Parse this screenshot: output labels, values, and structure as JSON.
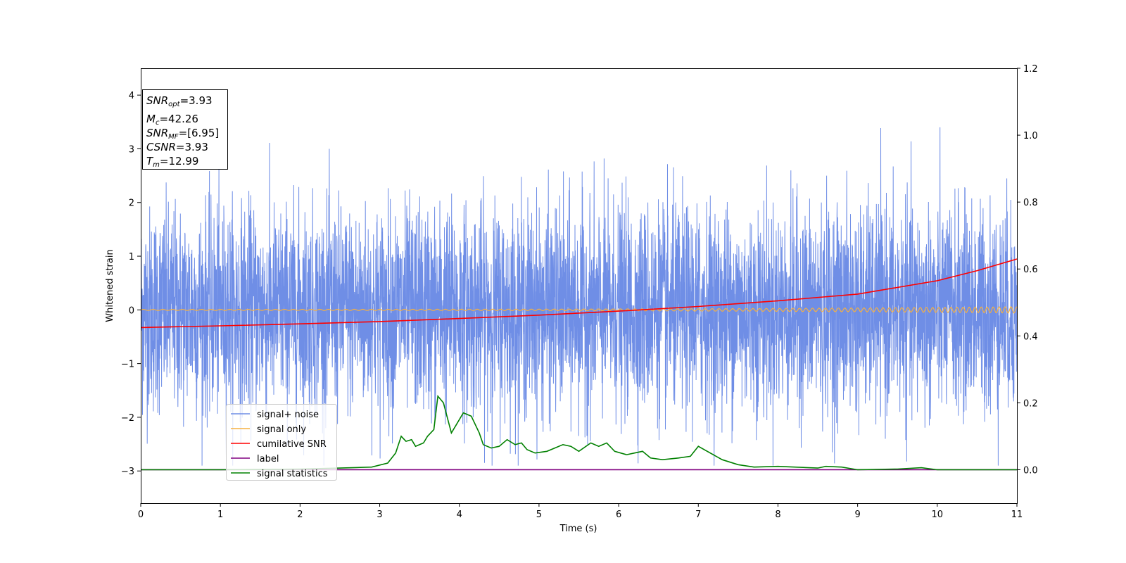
{
  "chart_data": {
    "type": "line",
    "xlabel": "Time (s)",
    "ylabel": "Whitened strain",
    "xlim": [
      0,
      11
    ],
    "ylim_left": [
      -3.6,
      4.5
    ],
    "ylim_right": [
      -0.1,
      1.2
    ],
    "x_ticks": [
      "0",
      "1",
      "2",
      "3",
      "4",
      "5",
      "6",
      "7",
      "8",
      "9",
      "10",
      "11"
    ],
    "y_ticks_left": [
      "−3",
      "−2",
      "−1",
      "0",
      "1",
      "2",
      "3",
      "4"
    ],
    "y_ticks_right": [
      "0.0",
      "0.2",
      "0.4",
      "0.6",
      "0.8",
      "1.0",
      "1.2"
    ],
    "legend_position": "lower-left",
    "colors": {
      "noise": "#6f8ee6",
      "signal": "#f5b041",
      "csnr": "#ff0000",
      "label": "#800080",
      "stats": "#008000"
    },
    "series": [
      {
        "name": "signal+ noise",
        "axis": "left",
        "description_values": "noise band between approx -2.9 and 3.4"
      },
      {
        "name": "signal only",
        "axis": "left",
        "x": [
          0,
          11
        ],
        "y": [
          0,
          0
        ]
      },
      {
        "name": "cumilative SNR",
        "axis": "right",
        "x": [
          0,
          1,
          2,
          3,
          4,
          5,
          6,
          7,
          8,
          9,
          10,
          10.5,
          11
        ],
        "y": [
          0.425,
          0.43,
          0.436,
          0.443,
          0.452,
          0.462,
          0.474,
          0.488,
          0.505,
          0.525,
          0.565,
          0.595,
          0.63
        ]
      },
      {
        "name": "label",
        "axis": "right",
        "x": [
          0,
          11
        ],
        "y": [
          0,
          0
        ]
      },
      {
        "name": "signal statistics",
        "axis": "right",
        "x": [
          0,
          1,
          2,
          2.5,
          2.9,
          3.1,
          3.2,
          3.27,
          3.33,
          3.4,
          3.45,
          3.55,
          3.6,
          3.68,
          3.73,
          3.8,
          3.9,
          3.95,
          4.05,
          4.15,
          4.25,
          4.3,
          4.4,
          4.5,
          4.6,
          4.7,
          4.78,
          4.85,
          4.95,
          5.1,
          5.3,
          5.4,
          5.5,
          5.65,
          5.75,
          5.85,
          5.95,
          6.1,
          6.2,
          6.3,
          6.4,
          6.55,
          6.75,
          6.9,
          7.0,
          7.3,
          7.5,
          7.7,
          8.0,
          8.5,
          8.6,
          8.8,
          9.0,
          9.5,
          9.8,
          10.0,
          11.0
        ],
        "y": [
          0.0,
          0.0,
          0.002,
          0.005,
          0.008,
          0.02,
          0.05,
          0.1,
          0.085,
          0.09,
          0.07,
          0.08,
          0.1,
          0.12,
          0.22,
          0.2,
          0.11,
          0.13,
          0.17,
          0.16,
          0.11,
          0.075,
          0.065,
          0.07,
          0.09,
          0.075,
          0.08,
          0.06,
          0.05,
          0.055,
          0.075,
          0.07,
          0.055,
          0.08,
          0.07,
          0.08,
          0.055,
          0.045,
          0.05,
          0.055,
          0.035,
          0.03,
          0.035,
          0.04,
          0.07,
          0.03,
          0.015,
          0.008,
          0.01,
          0.005,
          0.01,
          0.008,
          0.0,
          0.002,
          0.006,
          0.0,
          0.0
        ]
      }
    ]
  },
  "info_box": {
    "snr_opt_name": "SNR",
    "snr_opt_sub": "opt",
    "snr_opt_value": "=3.93",
    "mc_name": "M",
    "mc_sub": "c",
    "mc_value": "=42.26",
    "snr_mf_name": "SNR",
    "snr_mf_sub": "MF",
    "snr_mf_value": "=[6.95]",
    "csnr_name": "CSNR",
    "csnr_value": "=3.93",
    "tm_name": "T",
    "tm_sub": "m",
    "tm_value": "=12.99"
  },
  "legend": {
    "items": [
      {
        "label": "signal+ noise",
        "color": "#6f8ee6"
      },
      {
        "label": "signal only",
        "color": "#f5b041"
      },
      {
        "label": "cumilative SNR",
        "color": "#ff0000"
      },
      {
        "label": "label",
        "color": "#800080"
      },
      {
        "label": "signal statistics",
        "color": "#008000"
      }
    ]
  }
}
